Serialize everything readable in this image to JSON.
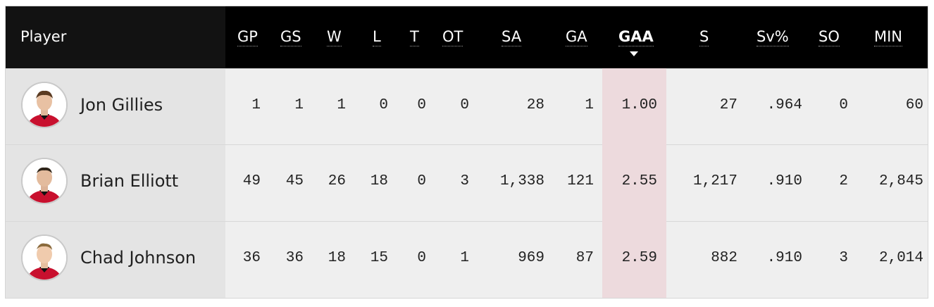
{
  "table": {
    "columns": [
      {
        "key": "player",
        "label": "Player"
      },
      {
        "key": "gp",
        "label": "GP"
      },
      {
        "key": "gs",
        "label": "GS"
      },
      {
        "key": "w",
        "label": "W"
      },
      {
        "key": "l",
        "label": "L"
      },
      {
        "key": "t",
        "label": "T"
      },
      {
        "key": "ot",
        "label": "OT"
      },
      {
        "key": "sa",
        "label": "SA"
      },
      {
        "key": "ga",
        "label": "GA"
      },
      {
        "key": "gaa",
        "label": "GAA"
      },
      {
        "key": "s",
        "label": "S"
      },
      {
        "key": "svpct",
        "label": "Sv%"
      },
      {
        "key": "so",
        "label": "SO"
      },
      {
        "key": "min",
        "label": "MIN"
      }
    ],
    "sorted_column": "GAA",
    "sort_direction": "descending-arrow",
    "rows": [
      {
        "player": "Jon Gillies",
        "gp": "1",
        "gs": "1",
        "w": "1",
        "l": "0",
        "t": "0",
        "ot": "0",
        "sa": "28",
        "ga": "1",
        "gaa": "1.00",
        "s": "27",
        "svpct": ".964",
        "so": "0",
        "min": "60"
      },
      {
        "player": "Brian Elliott",
        "gp": "49",
        "gs": "45",
        "w": "26",
        "l": "18",
        "t": "0",
        "ot": "3",
        "sa": "1,338",
        "ga": "121",
        "gaa": "2.55",
        "s": "1,217",
        "svpct": ".910",
        "so": "2",
        "min": "2,845"
      },
      {
        "player": "Chad Johnson",
        "gp": "36",
        "gs": "36",
        "w": "18",
        "l": "15",
        "t": "0",
        "ot": "1",
        "sa": "969",
        "ga": "87",
        "gaa": "2.59",
        "s": "882",
        "svpct": ".910",
        "so": "3",
        "min": "2,014"
      }
    ]
  },
  "colors": {
    "header_bg": "#000000",
    "highlight": "#eddadd",
    "jersey_red": "#c8102e"
  }
}
